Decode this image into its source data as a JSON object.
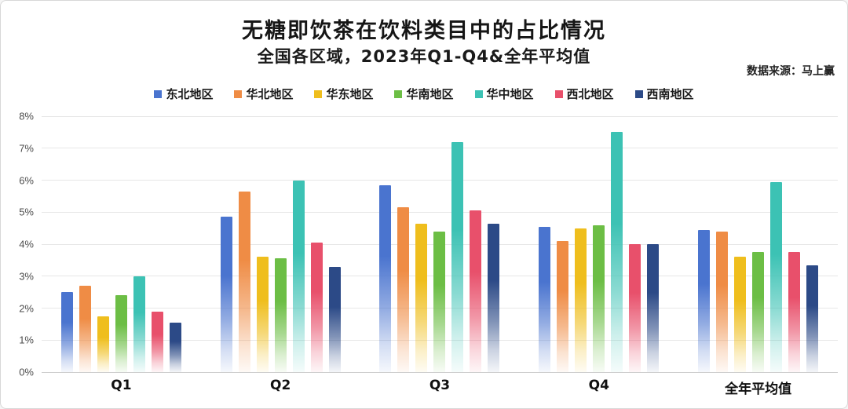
{
  "header": {
    "title": "无糖即饮茶在饮料类目中的占比情况",
    "subtitle": "全国各区域，2023年Q1-Q4&全年平均值",
    "source": "数据来源：马上赢"
  },
  "chart_data": {
    "type": "bar",
    "title": "无糖即饮茶在饮料类目中的占比情况",
    "subtitle": "全国各区域，2023年Q1-Q4&全年平均值",
    "categories": [
      "Q1",
      "Q2",
      "Q3",
      "Q4",
      "全年平均值"
    ],
    "series": [
      {
        "name": "东北地区",
        "color": "#4A74CF",
        "values": [
          2.5,
          4.85,
          5.85,
          4.55,
          4.45
        ]
      },
      {
        "name": "华北地区",
        "color": "#EF8C45",
        "values": [
          2.7,
          5.65,
          5.15,
          4.1,
          4.4
        ]
      },
      {
        "name": "华东地区",
        "color": "#EFBE1D",
        "values": [
          1.75,
          3.6,
          4.65,
          4.5,
          3.6
        ]
      },
      {
        "name": "华南地区",
        "color": "#6CBE45",
        "values": [
          2.4,
          3.55,
          4.4,
          4.6,
          3.75
        ]
      },
      {
        "name": "华中地区",
        "color": "#3CC2B4",
        "values": [
          3.0,
          6.0,
          7.2,
          7.5,
          5.95
        ]
      },
      {
        "name": "西北地区",
        "color": "#E8506B",
        "values": [
          1.9,
          4.05,
          5.05,
          4.0,
          3.75
        ]
      },
      {
        "name": "西南地区",
        "color": "#2C4A87",
        "values": [
          1.55,
          3.3,
          4.65,
          4.0,
          3.35
        ]
      }
    ],
    "xlabel": "",
    "ylabel": "",
    "ylim": [
      0,
      8
    ],
    "yticks": [
      "0%",
      "1%",
      "2%",
      "3%",
      "4%",
      "5%",
      "6%",
      "7%",
      "8%"
    ],
    "grid": true,
    "legend_position": "top",
    "bar_style": "vertical-gradient-fade"
  }
}
